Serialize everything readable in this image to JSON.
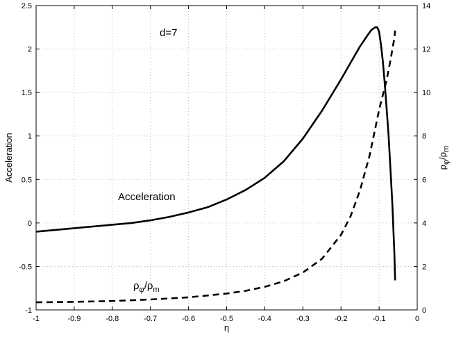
{
  "chart_data": {
    "type": "line",
    "xlabel": "η",
    "ylabel_left": "Acceleration",
    "ylabel_right": {
      "base": "ρ",
      "sub1": "φ",
      "sep": "/ρ",
      "sub2": "m"
    },
    "xlim": [
      -1,
      0
    ],
    "ylim_left": [
      -1,
      2.5
    ],
    "ylim_right": [
      0,
      14
    ],
    "grid": true,
    "x_ticks": [
      {
        "value": -1,
        "label": "-1"
      },
      {
        "value": -0.9,
        "label": "-0.9"
      },
      {
        "value": -0.8,
        "label": "-0.8"
      },
      {
        "value": -0.7,
        "label": "-0.7"
      },
      {
        "value": -0.6,
        "label": "-0.6"
      },
      {
        "value": -0.5,
        "label": "-0.5"
      },
      {
        "value": -0.4,
        "label": "-0.4"
      },
      {
        "value": -0.3,
        "label": "-0.3"
      },
      {
        "value": -0.2,
        "label": "-0.2"
      },
      {
        "value": -0.1,
        "label": "-0.1"
      },
      {
        "value": 0,
        "label": "0"
      }
    ],
    "y_left_ticks": [
      {
        "value": -1,
        "label": "-1"
      },
      {
        "value": -0.5,
        "label": "-0.5"
      },
      {
        "value": 0,
        "label": "0"
      },
      {
        "value": 0.5,
        "label": "0.5"
      },
      {
        "value": 1,
        "label": "1"
      },
      {
        "value": 1.5,
        "label": "1.5"
      },
      {
        "value": 2,
        "label": "2"
      },
      {
        "value": 2.5,
        "label": "2.5"
      }
    ],
    "y_right_ticks": [
      {
        "value": 0,
        "label": "0"
      },
      {
        "value": 2,
        "label": "2"
      },
      {
        "value": 4,
        "label": "4"
      },
      {
        "value": 6,
        "label": "6"
      },
      {
        "value": 8,
        "label": "8"
      },
      {
        "value": 10,
        "label": "10"
      },
      {
        "value": 12,
        "label": "12"
      },
      {
        "value": 14,
        "label": "14"
      }
    ],
    "annotations": {
      "param": "d=7",
      "acceleration_label": "Acceleration",
      "ratio_label": {
        "base": "ρ",
        "sub1": "φ",
        "sep": "/ρ",
        "sub2": "m"
      }
    },
    "series": [
      {
        "axis": "left",
        "style": "solid",
        "x": [
          -1,
          -0.95,
          -0.9,
          -0.85,
          -0.8,
          -0.75,
          -0.7,
          -0.65,
          -0.6,
          -0.55,
          -0.5,
          -0.45,
          -0.4,
          -0.35,
          -0.3,
          -0.25,
          -0.2,
          -0.17,
          -0.15,
          -0.13,
          -0.12,
          -0.11,
          -0.105,
          -0.1,
          -0.095,
          -0.09,
          -0.085,
          -0.08,
          -0.075,
          -0.07,
          -0.065,
          -0.06,
          -0.058
        ],
        "values": [
          -0.1,
          -0.08,
          -0.06,
          -0.04,
          -0.02,
          0.0,
          0.03,
          0.07,
          0.12,
          0.18,
          0.27,
          0.38,
          0.52,
          0.71,
          0.97,
          1.29,
          1.65,
          1.88,
          2.03,
          2.16,
          2.22,
          2.25,
          2.25,
          2.2,
          2.05,
          1.85,
          1.6,
          1.3,
          1.0,
          0.6,
          0.2,
          -0.35,
          -0.66
        ]
      },
      {
        "axis": "right",
        "style": "dashed",
        "x": [
          -1,
          -0.9,
          -0.8,
          -0.7,
          -0.6,
          -0.5,
          -0.45,
          -0.4,
          -0.35,
          -0.3,
          -0.25,
          -0.2,
          -0.175,
          -0.15,
          -0.125,
          -0.1,
          -0.09,
          -0.08,
          -0.07,
          -0.065,
          -0.06,
          -0.058
        ],
        "values": [
          0.35,
          0.37,
          0.41,
          0.48,
          0.58,
          0.75,
          0.88,
          1.06,
          1.32,
          1.72,
          2.35,
          3.45,
          4.3,
          5.5,
          7.1,
          9.2,
          9.9,
          10.6,
          11.5,
          12.0,
          12.5,
          12.85
        ]
      }
    ]
  }
}
